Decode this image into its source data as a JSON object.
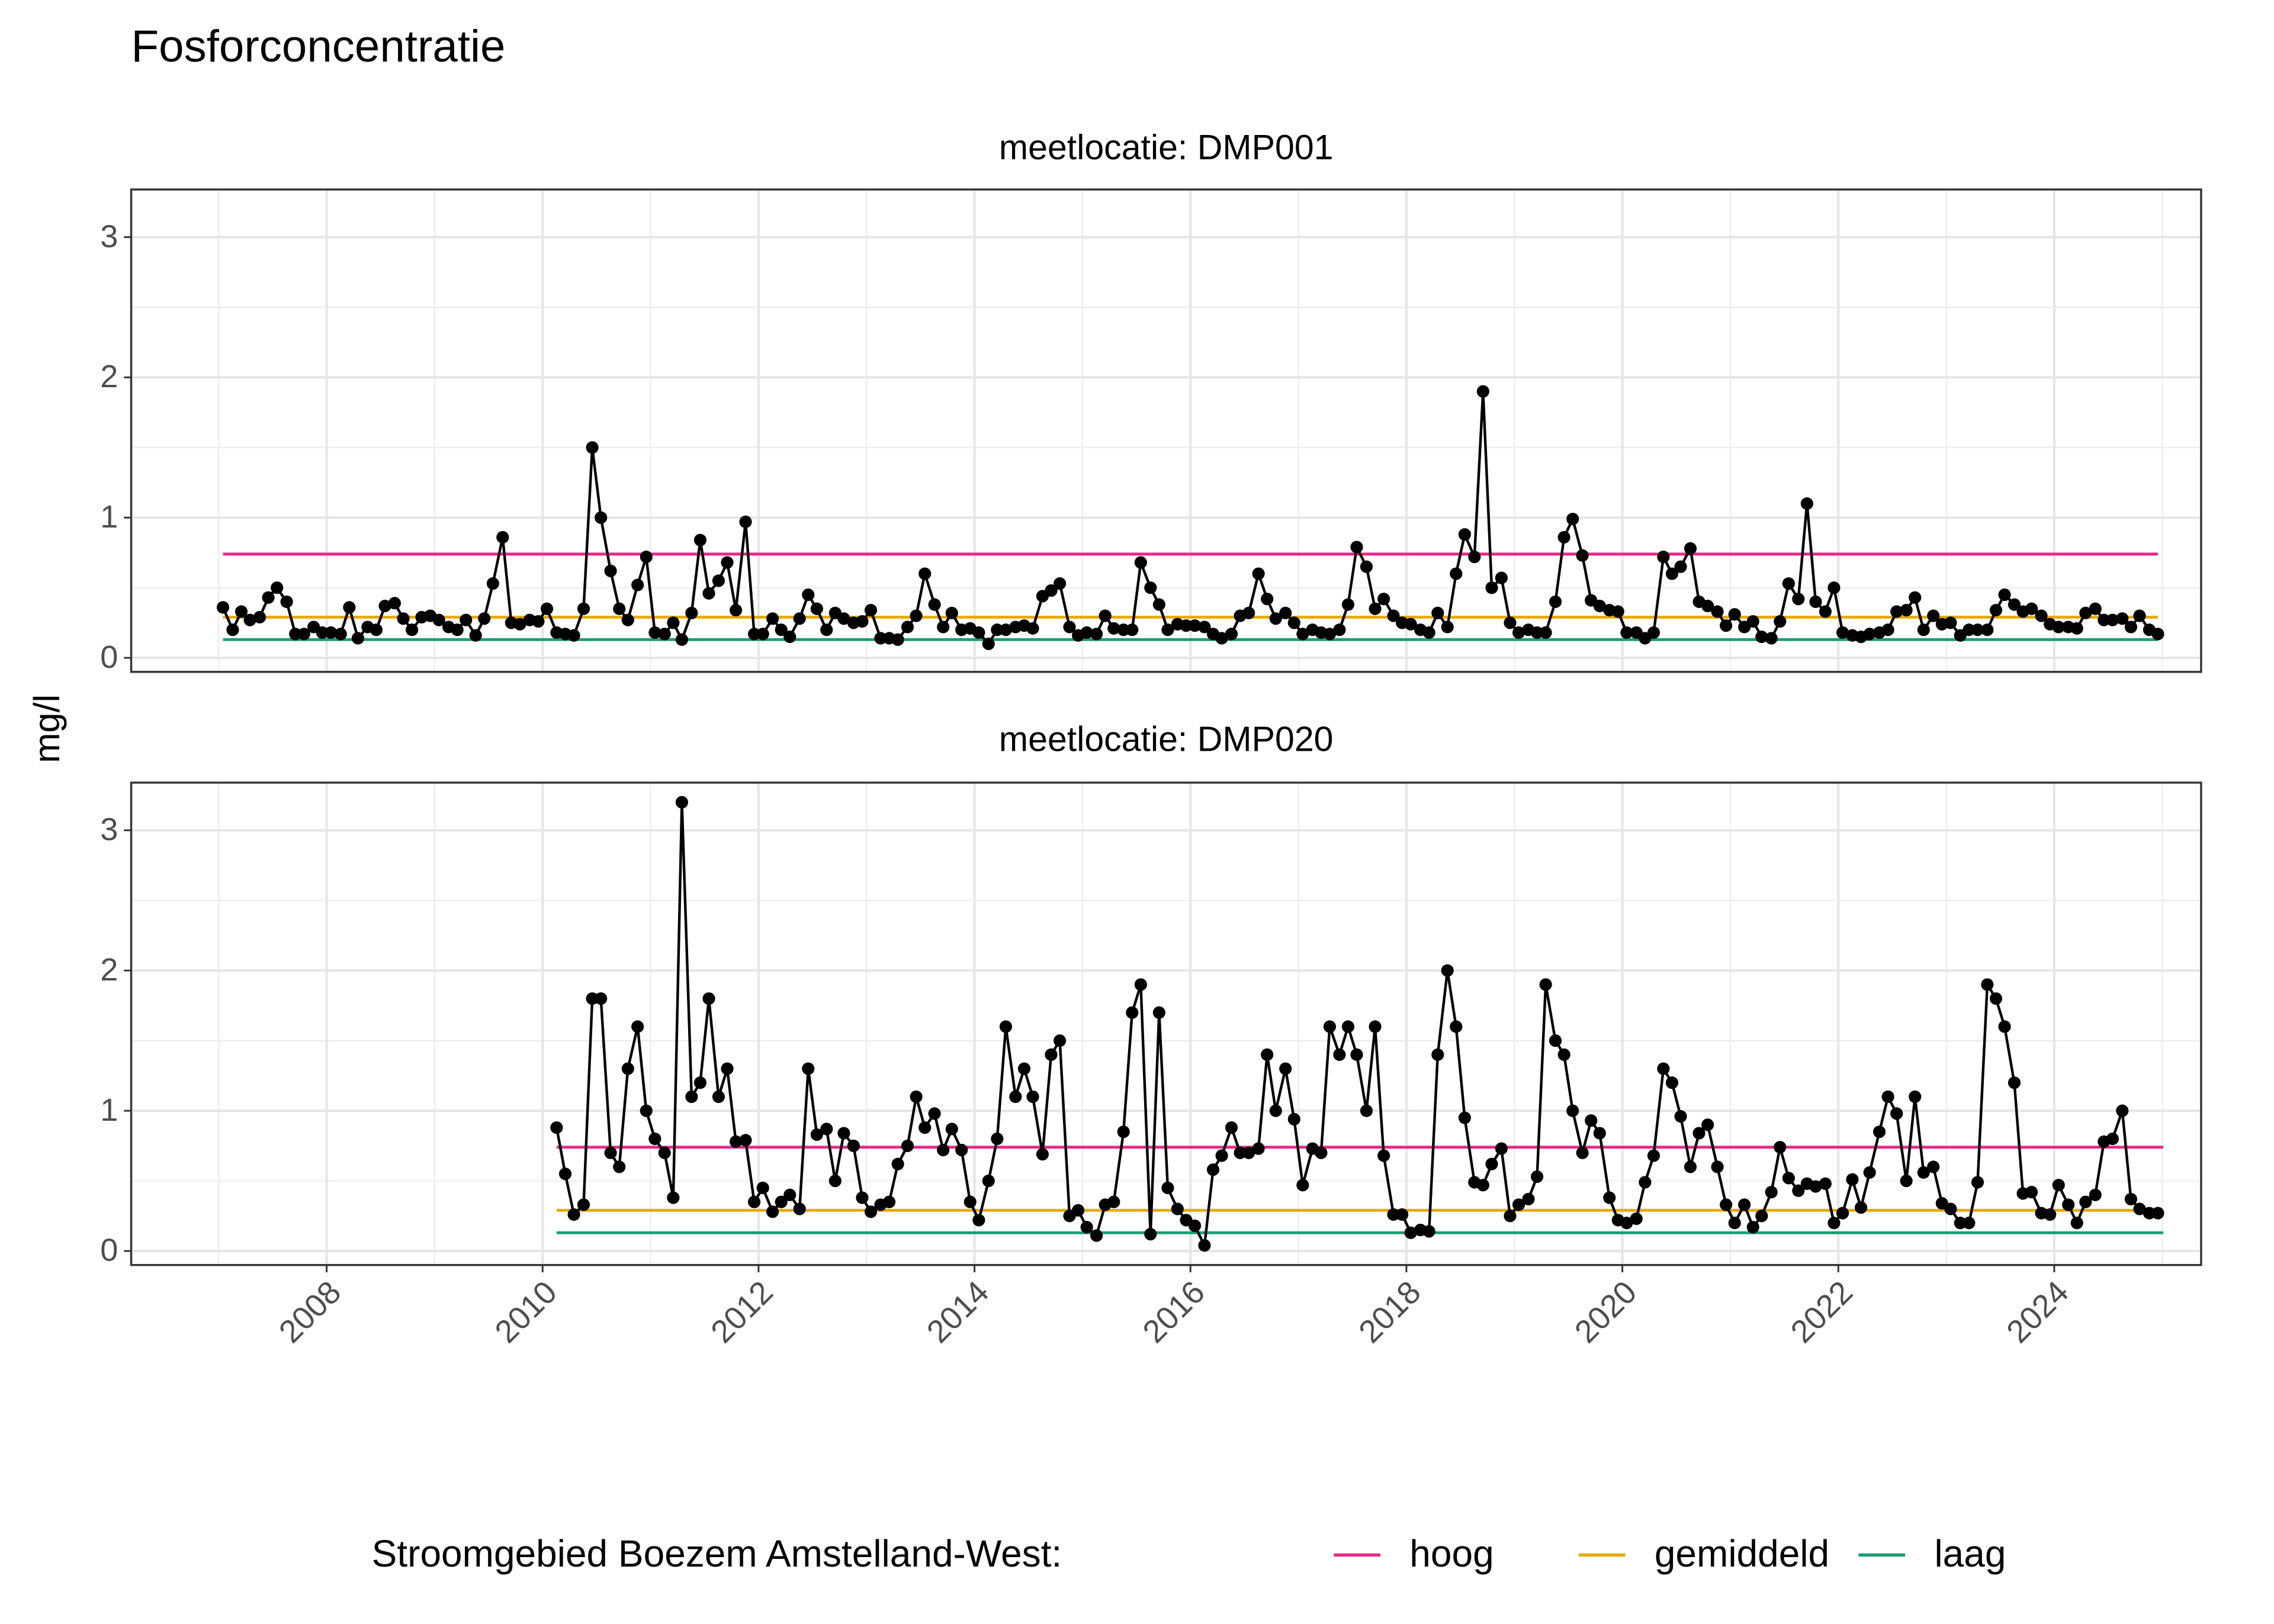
{
  "title": "Fosforconcentratie",
  "y_label": "mg/l",
  "legend": {
    "title": "Stroomgebied Boezem Amstelland-West:",
    "entries": [
      {
        "name": "hoog",
        "color": "#e7298a"
      },
      {
        "name": "gemiddeld",
        "color": "#e6ab02"
      },
      {
        "name": "laag",
        "color": "#1b9e77"
      }
    ]
  },
  "chart_data": [
    {
      "type": "line",
      "title": "meetlocatie: DMP001",
      "color": "#000000",
      "xlim": [
        2006.19,
        2025.36
      ],
      "ylim": [
        -0.1,
        3.34
      ],
      "xticks": [
        2008,
        2010,
        2012,
        2014,
        2016,
        2018,
        2020,
        2022,
        2024
      ],
      "yticks": [
        0,
        1,
        2,
        3
      ],
      "grid": true,
      "reference_lines": [
        {
          "x": [
            2007.04,
            2024.96
          ],
          "values": [
            0.74,
            0.74
          ]
        },
        {
          "x": [
            2007.04,
            2024.96
          ],
          "values": [
            0.29,
            0.29
          ]
        },
        {
          "x": [
            2007.04,
            2024.96
          ],
          "values": [
            0.13,
            0.13
          ]
        }
      ],
      "x": [
        2007.04,
        2007.13,
        2007.21,
        2007.29,
        2007.38,
        2007.46,
        2007.54,
        2007.63,
        2007.71,
        2007.79,
        2007.88,
        2007.96,
        2008.04,
        2008.13,
        2008.21,
        2008.29,
        2008.38,
        2008.46,
        2008.54,
        2008.63,
        2008.71,
        2008.79,
        2008.88,
        2008.96,
        2009.04,
        2009.13,
        2009.21,
        2009.29,
        2009.38,
        2009.46,
        2009.54,
        2009.63,
        2009.71,
        2009.79,
        2009.88,
        2009.96,
        2010.04,
        2010.13,
        2010.21,
        2010.29,
        2010.38,
        2010.46,
        2010.54,
        2010.63,
        2010.71,
        2010.79,
        2010.88,
        2010.96,
        2011.04,
        2011.13,
        2011.21,
        2011.29,
        2011.38,
        2011.46,
        2011.54,
        2011.63,
        2011.71,
        2011.79,
        2011.88,
        2011.96,
        2012.04,
        2012.13,
        2012.21,
        2012.29,
        2012.38,
        2012.46,
        2012.54,
        2012.63,
        2012.71,
        2012.79,
        2012.88,
        2012.96,
        2013.04,
        2013.13,
        2013.21,
        2013.29,
        2013.38,
        2013.46,
        2013.54,
        2013.63,
        2013.71,
        2013.79,
        2013.88,
        2013.96,
        2014.04,
        2014.13,
        2014.21,
        2014.29,
        2014.38,
        2014.46,
        2014.54,
        2014.63,
        2014.71,
        2014.79,
        2014.88,
        2014.96,
        2015.04,
        2015.13,
        2015.21,
        2015.29,
        2015.38,
        2015.46,
        2015.54,
        2015.63,
        2015.71,
        2015.79,
        2015.88,
        2015.96,
        2016.04,
        2016.13,
        2016.21,
        2016.29,
        2016.38,
        2016.46,
        2016.54,
        2016.63,
        2016.71,
        2016.79,
        2016.88,
        2016.96,
        2017.04,
        2017.13,
        2017.21,
        2017.29,
        2017.38,
        2017.46,
        2017.54,
        2017.63,
        2017.71,
        2017.79,
        2017.88,
        2017.96,
        2018.04,
        2018.13,
        2018.21,
        2018.29,
        2018.38,
        2018.46,
        2018.54,
        2018.63,
        2018.71,
        2018.79,
        2018.88,
        2018.96,
        2019.04,
        2019.13,
        2019.21,
        2019.29,
        2019.38,
        2019.46,
        2019.54,
        2019.63,
        2019.71,
        2019.79,
        2019.88,
        2019.96,
        2020.04,
        2020.13,
        2020.21,
        2020.29,
        2020.38,
        2020.46,
        2020.54,
        2020.63,
        2020.71,
        2020.79,
        2020.88,
        2020.96,
        2021.04,
        2021.13,
        2021.21,
        2021.29,
        2021.38,
        2021.46,
        2021.54,
        2021.63,
        2021.71,
        2021.79,
        2021.88,
        2021.96,
        2022.04,
        2022.13,
        2022.21,
        2022.29,
        2022.38,
        2022.46,
        2022.54,
        2022.63,
        2022.71,
        2022.79,
        2022.88,
        2022.96,
        2023.04,
        2023.13,
        2023.21,
        2023.29,
        2023.38,
        2023.46,
        2023.54,
        2023.63,
        2023.71,
        2023.79,
        2023.88,
        2023.96,
        2024.04,
        2024.13,
        2024.21,
        2024.29,
        2024.38,
        2024.46,
        2024.54,
        2024.63,
        2024.71,
        2024.79,
        2024.88,
        2024.96
      ],
      "values": [
        0.36,
        0.2,
        0.33,
        0.27,
        0.29,
        0.43,
        0.5,
        0.4,
        0.17,
        0.17,
        0.22,
        0.18,
        0.18,
        0.17,
        0.36,
        0.14,
        0.22,
        0.2,
        0.37,
        0.39,
        0.28,
        0.2,
        0.29,
        0.3,
        0.27,
        0.22,
        0.2,
        0.27,
        0.16,
        0.28,
        0.53,
        0.86,
        0.25,
        0.24,
        0.27,
        0.26,
        0.35,
        0.18,
        0.17,
        0.16,
        0.35,
        1.5,
        1.0,
        0.62,
        0.35,
        0.27,
        0.52,
        0.72,
        0.18,
        0.17,
        0.25,
        0.13,
        0.32,
        0.84,
        0.46,
        0.55,
        0.68,
        0.34,
        0.97,
        0.17,
        0.17,
        0.28,
        0.2,
        0.15,
        0.28,
        0.45,
        0.35,
        0.2,
        0.32,
        0.28,
        0.25,
        0.26,
        0.34,
        0.14,
        0.14,
        0.13,
        0.22,
        0.3,
        0.6,
        0.38,
        0.22,
        0.32,
        0.2,
        0.21,
        0.18,
        0.1,
        0.2,
        0.2,
        0.22,
        0.23,
        0.21,
        0.44,
        0.48,
        0.53,
        0.22,
        0.16,
        0.18,
        0.17,
        0.3,
        0.21,
        0.2,
        0.2,
        0.68,
        0.5,
        0.38,
        0.2,
        0.24,
        0.23,
        0.23,
        0.22,
        0.17,
        0.14,
        0.17,
        0.3,
        0.32,
        0.6,
        0.42,
        0.28,
        0.32,
        0.25,
        0.17,
        0.2,
        0.18,
        0.17,
        0.2,
        0.38,
        0.79,
        0.65,
        0.35,
        0.42,
        0.3,
        0.25,
        0.24,
        0.2,
        0.18,
        0.32,
        0.22,
        0.6,
        0.88,
        0.72,
        1.9,
        0.5,
        0.57,
        0.25,
        0.18,
        0.2,
        0.18,
        0.18,
        0.4,
        0.86,
        0.99,
        0.73,
        0.41,
        0.37,
        0.34,
        0.33,
        0.18,
        0.18,
        0.14,
        0.18,
        0.72,
        0.6,
        0.65,
        0.78,
        0.4,
        0.37,
        0.33,
        0.23,
        0.31,
        0.22,
        0.26,
        0.15,
        0.14,
        0.26,
        0.53,
        0.42,
        1.1,
        0.4,
        0.33,
        0.5,
        0.18,
        0.16,
        0.15,
        0.17,
        0.18,
        0.2,
        0.33,
        0.34,
        0.43,
        0.2,
        0.3,
        0.24,
        0.25,
        0.16,
        0.2,
        0.2,
        0.2,
        0.34,
        0.45,
        0.38,
        0.33,
        0.35,
        0.3,
        0.24,
        0.22,
        0.22,
        0.21,
        0.32,
        0.35,
        0.27,
        0.27,
        0.28,
        0.22,
        0.3,
        0.2,
        0.17
      ]
    },
    {
      "type": "line",
      "title": "meetlocatie: DMP020",
      "color": "#000000",
      "xlim": [
        2006.19,
        2025.36
      ],
      "ylim": [
        -0.1,
        3.34
      ],
      "xticks": [
        2008,
        2010,
        2012,
        2014,
        2016,
        2018,
        2020,
        2022,
        2024
      ],
      "yticks": [
        0,
        1,
        2,
        3
      ],
      "grid": true,
      "reference_lines": [
        {
          "x": [
            2010.13,
            2025.01
          ],
          "values": [
            0.74,
            0.74
          ]
        },
        {
          "x": [
            2010.13,
            2025.01
          ],
          "values": [
            0.29,
            0.29
          ]
        },
        {
          "x": [
            2010.13,
            2025.01
          ],
          "values": [
            0.13,
            0.13
          ]
        }
      ],
      "x": [
        2010.13,
        2010.21,
        2010.29,
        2010.38,
        2010.46,
        2010.54,
        2010.63,
        2010.71,
        2010.79,
        2010.88,
        2010.96,
        2011.04,
        2011.13,
        2011.21,
        2011.29,
        2011.38,
        2011.46,
        2011.54,
        2011.63,
        2011.71,
        2011.79,
        2011.88,
        2011.96,
        2012.04,
        2012.13,
        2012.21,
        2012.29,
        2012.38,
        2012.46,
        2012.54,
        2012.63,
        2012.71,
        2012.79,
        2012.88,
        2012.96,
        2013.04,
        2013.13,
        2013.21,
        2013.29,
        2013.38,
        2013.46,
        2013.54,
        2013.63,
        2013.71,
        2013.79,
        2013.88,
        2013.96,
        2014.04,
        2014.13,
        2014.21,
        2014.29,
        2014.38,
        2014.46,
        2014.54,
        2014.63,
        2014.71,
        2014.79,
        2014.88,
        2014.96,
        2015.04,
        2015.13,
        2015.21,
        2015.29,
        2015.38,
        2015.46,
        2015.54,
        2015.63,
        2015.71,
        2015.79,
        2015.88,
        2015.96,
        2016.04,
        2016.13,
        2016.21,
        2016.29,
        2016.38,
        2016.46,
        2016.54,
        2016.63,
        2016.71,
        2016.79,
        2016.88,
        2016.96,
        2017.04,
        2017.13,
        2017.21,
        2017.29,
        2017.38,
        2017.46,
        2017.54,
        2017.63,
        2017.71,
        2017.79,
        2017.88,
        2017.96,
        2018.04,
        2018.13,
        2018.21,
        2018.29,
        2018.38,
        2018.46,
        2018.54,
        2018.63,
        2018.71,
        2018.79,
        2018.88,
        2018.96,
        2019.04,
        2019.13,
        2019.21,
        2019.29,
        2019.38,
        2019.46,
        2019.54,
        2019.63,
        2019.71,
        2019.79,
        2019.88,
        2019.96,
        2020.04,
        2020.13,
        2020.21,
        2020.29,
        2020.38,
        2020.46,
        2020.54,
        2020.63,
        2020.71,
        2020.79,
        2020.88,
        2020.96,
        2021.04,
        2021.13,
        2021.21,
        2021.29,
        2021.38,
        2021.46,
        2021.54,
        2021.63,
        2021.71,
        2021.79,
        2021.88,
        2021.96,
        2022.04,
        2022.13,
        2022.21,
        2022.29,
        2022.38,
        2022.46,
        2022.54,
        2022.63,
        2022.71,
        2022.79,
        2022.88,
        2022.96,
        2023.04,
        2023.13,
        2023.21,
        2023.29,
        2023.38,
        2023.46,
        2023.54,
        2023.63,
        2023.71,
        2023.79,
        2023.88,
        2023.96,
        2024.04,
        2024.13,
        2024.21,
        2024.29,
        2024.38,
        2024.46,
        2024.54,
        2024.63,
        2024.71,
        2024.79,
        2024.88,
        2024.96
      ],
      "values": [
        0.88,
        0.55,
        0.26,
        0.33,
        1.8,
        1.8,
        0.7,
        0.6,
        1.3,
        1.6,
        1.0,
        0.8,
        0.7,
        0.38,
        3.2,
        1.1,
        1.2,
        1.8,
        1.1,
        1.3,
        0.78,
        0.79,
        0.35,
        0.45,
        0.28,
        0.35,
        0.4,
        0.3,
        1.3,
        0.83,
        0.87,
        0.5,
        0.84,
        0.75,
        0.38,
        0.28,
        0.33,
        0.35,
        0.62,
        0.75,
        1.1,
        0.88,
        0.98,
        0.72,
        0.87,
        0.72,
        0.35,
        0.22,
        0.5,
        0.8,
        1.6,
        1.1,
        1.3,
        1.1,
        0.69,
        1.4,
        1.5,
        0.25,
        0.29,
        0.17,
        0.11,
        0.33,
        0.35,
        0.85,
        1.7,
        1.9,
        0.12,
        1.7,
        0.45,
        0.3,
        0.22,
        0.18,
        0.04,
        0.58,
        0.68,
        0.88,
        0.7,
        0.7,
        0.73,
        1.4,
        1.0,
        1.3,
        0.94,
        0.47,
        0.73,
        0.7,
        1.6,
        1.4,
        1.6,
        1.4,
        1.0,
        1.6,
        0.68,
        0.26,
        0.26,
        0.13,
        0.15,
        0.14,
        1.4,
        2.0,
        1.6,
        0.95,
        0.49,
        0.47,
        0.62,
        0.73,
        0.25,
        0.33,
        0.37,
        0.53,
        1.9,
        1.5,
        1.4,
        1.0,
        0.7,
        0.93,
        0.84,
        0.38,
        0.22,
        0.2,
        0.23,
        0.49,
        0.68,
        1.3,
        1.2,
        0.96,
        0.6,
        0.84,
        0.9,
        0.6,
        0.33,
        0.2,
        0.33,
        0.17,
        0.25,
        0.42,
        0.74,
        0.52,
        0.43,
        0.48,
        0.46,
        0.48,
        0.2,
        0.27,
        0.51,
        0.31,
        0.56,
        0.85,
        1.1,
        0.98,
        0.5,
        1.1,
        0.56,
        0.6,
        0.34,
        0.3,
        0.2,
        0.2,
        0.49,
        1.9,
        1.8,
        1.6,
        1.2,
        0.41,
        0.42,
        0.27,
        0.26,
        0.47,
        0.33,
        0.2,
        0.35,
        0.4,
        0.78,
        0.8,
        1.0,
        0.37,
        0.3,
        0.27,
        0.27
      ]
    }
  ]
}
